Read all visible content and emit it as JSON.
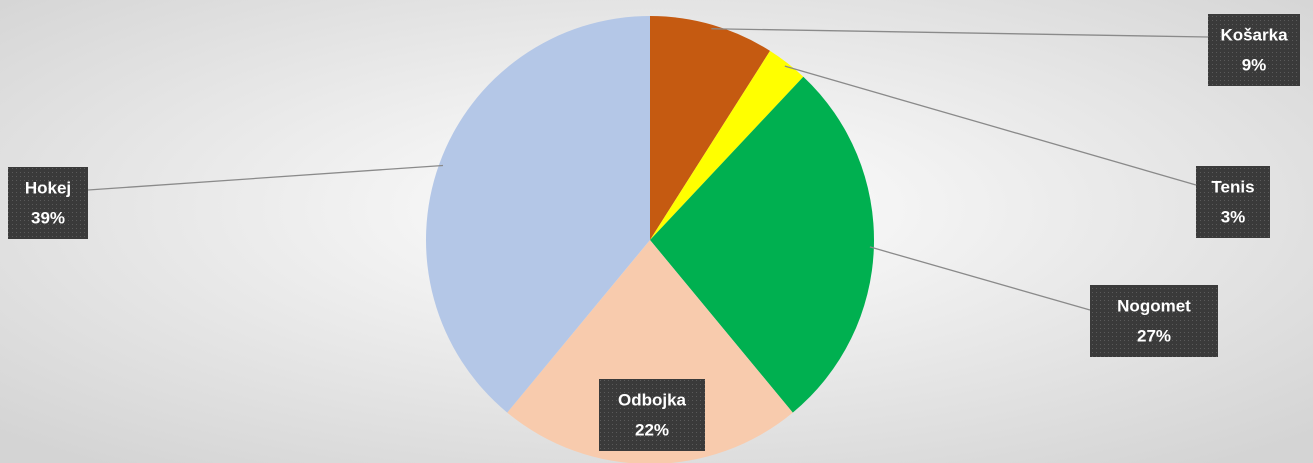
{
  "chart_data": {
    "type": "pie",
    "categories": [
      "Košarka",
      "Tenis",
      "Nogomet",
      "Odbojka",
      "Hokej"
    ],
    "values": [
      9,
      3,
      27,
      22,
      39
    ],
    "value_labels": [
      "9%",
      "3%",
      "27%",
      "22%",
      "39%"
    ],
    "colors": [
      "#c55a11",
      "#ffff00",
      "#00b050",
      "#f8cbad",
      "#b4c7e7"
    ]
  }
}
